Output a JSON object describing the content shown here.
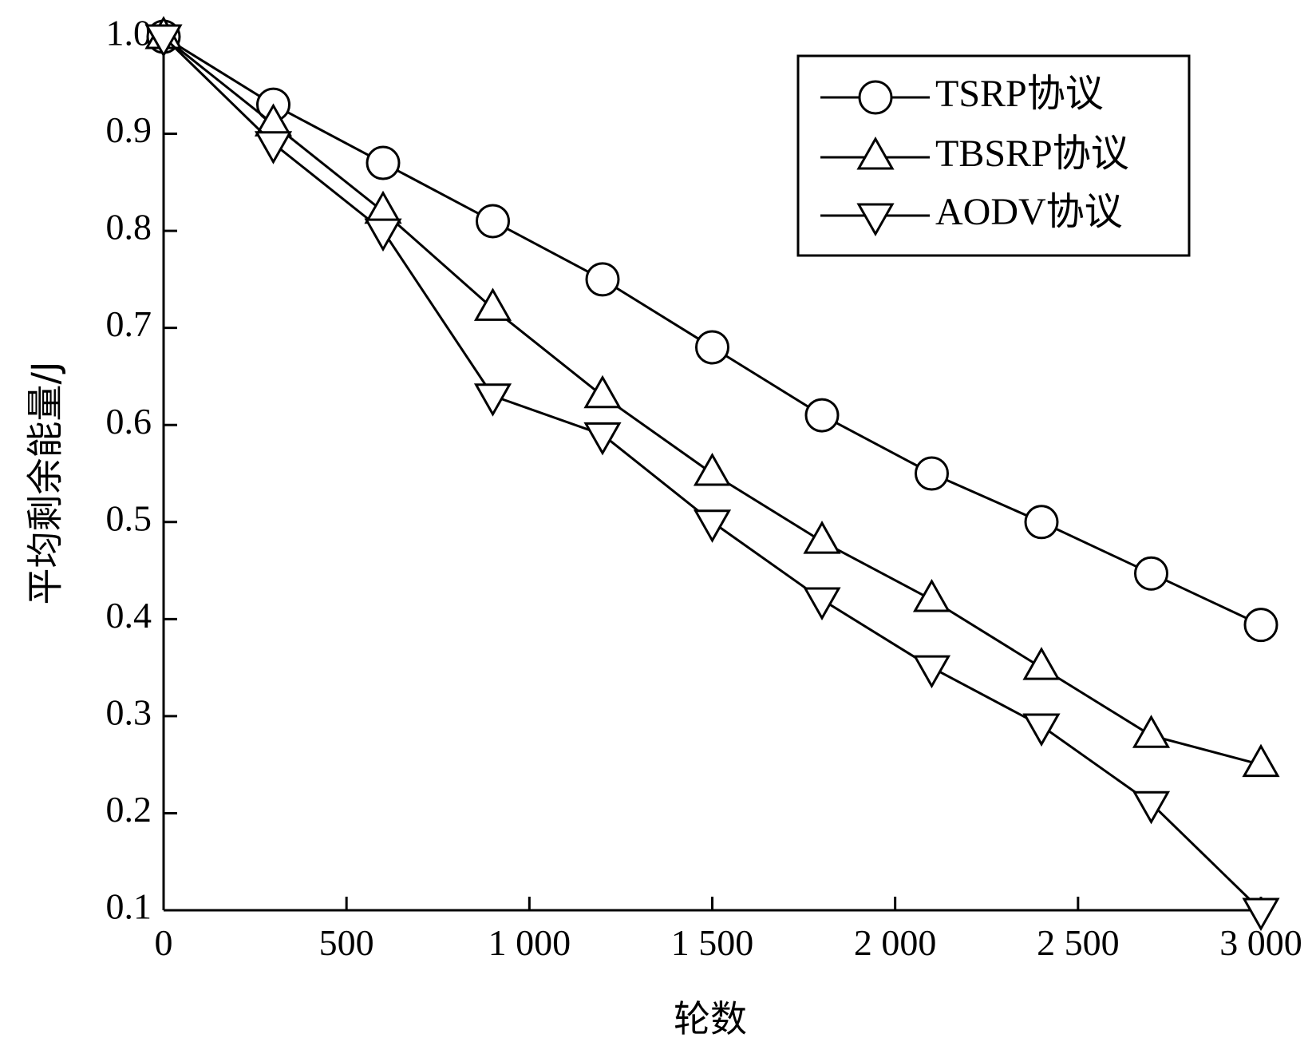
{
  "chart_data": {
    "type": "line",
    "xlabel": "轮数",
    "ylabel": "平均剩余能量/J",
    "xlim": [
      0,
      3000
    ],
    "ylim": [
      0.1,
      1.0
    ],
    "x_ticks": [
      0,
      500,
      1000,
      1500,
      2000,
      2500,
      3000
    ],
    "x_tick_labels": [
      "0",
      "500",
      "1 000",
      "1 500",
      "2 000",
      "2 500",
      "3 000"
    ],
    "y_ticks": [
      0.1,
      0.2,
      0.3,
      0.4,
      0.5,
      0.6,
      0.7,
      0.8,
      0.9,
      1.0
    ],
    "y_tick_labels": [
      "0.1",
      "0.2",
      "0.3",
      "0.4",
      "0.5",
      "0.6",
      "0.7",
      "0.8",
      "0.9",
      "1.0"
    ],
    "grid": false,
    "legend_position": "top-right",
    "x": [
      0,
      300,
      600,
      900,
      1200,
      1500,
      1800,
      2100,
      2400,
      2700,
      3000
    ],
    "series": [
      {
        "name": "TSRP协议",
        "marker": "circle",
        "values": [
          1.0,
          0.93,
          0.87,
          0.81,
          0.75,
          0.68,
          0.61,
          0.55,
          0.5,
          0.447,
          0.394
        ]
      },
      {
        "name": "TBSRP协议",
        "marker": "triangle-up",
        "values": [
          1.0,
          0.91,
          0.82,
          0.72,
          0.63,
          0.55,
          0.48,
          0.42,
          0.35,
          0.28,
          0.25
        ]
      },
      {
        "name": "AODV协议",
        "marker": "triangle-down",
        "values": [
          1.0,
          0.89,
          0.8,
          0.63,
          0.59,
          0.5,
          0.42,
          0.35,
          0.29,
          0.21,
          0.1
        ]
      }
    ]
  }
}
